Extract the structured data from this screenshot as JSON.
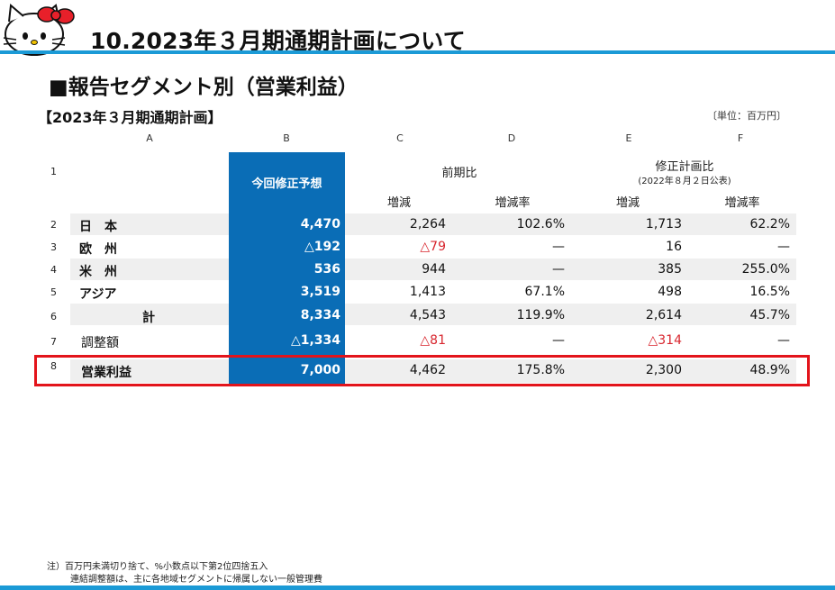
{
  "header": {
    "title": "10.2023年３月期通期計画について",
    "section_title": "■報告セグメント別（営業利益）",
    "plan_title": "【2023年３月期通期計画】",
    "unit": "〔単位：百万円〕"
  },
  "table": {
    "col_letters": [
      "A",
      "B",
      "C",
      "D",
      "E",
      "F"
    ],
    "row_numbers": [
      "1",
      "2",
      "3",
      "4",
      "5",
      "6",
      "7",
      "8"
    ],
    "headers": {
      "b": "今回修正予想",
      "prev_period": "前期比",
      "revised_plan": "修正計画比",
      "revised_plan_sub": "(2022年８月２日公表)",
      "change": "増減",
      "change_rate": "増減率"
    },
    "rows": [
      {
        "label": "日　本",
        "b": "4,470",
        "c": "2,264",
        "d": "102.6%",
        "e": "1,713",
        "f": "62.2%"
      },
      {
        "label": "欧　州",
        "b": "△192",
        "c": "△79",
        "d": "—",
        "e": "16",
        "f": "—"
      },
      {
        "label": "米　州",
        "b": "536",
        "c": "944",
        "d": "—",
        "e": "385",
        "f": "255.0%"
      },
      {
        "label": "アジア",
        "b": "3,519",
        "c": "1,413",
        "d": "67.1%",
        "e": "498",
        "f": "16.5%"
      },
      {
        "label": "計",
        "b": "8,334",
        "c": "4,543",
        "d": "119.9%",
        "e": "2,614",
        "f": "45.7%"
      },
      {
        "label": "調整額",
        "b": "△1,334",
        "c": "△81",
        "d": "—",
        "e": "△314",
        "f": "—"
      },
      {
        "label": "営業利益",
        "b": "7,000",
        "c": "4,462",
        "d": "175.8%",
        "e": "2,300",
        "f": "48.9%"
      }
    ]
  },
  "notes": {
    "line1": "注）百万円未満切り捨て、%小数点以下第2位四捨五入",
    "line2": "連結調整額は、主に各地域セグメントに帰属しない一般管理費"
  },
  "colors": {
    "accent_blue": "#1b9ad6",
    "column_b_blue": "#0a6db6",
    "highlight_red": "#e3141b",
    "negative_red": "#d8262e"
  }
}
